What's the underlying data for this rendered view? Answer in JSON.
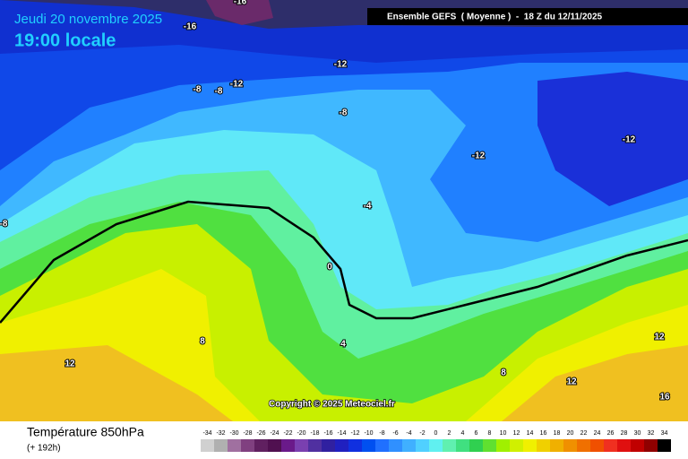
{
  "header": {
    "date": "Jeudi 20 novembre 2025",
    "time": "19:00 locale",
    "run": "Ensemble GEFS  ( Moyenne )  -  18 Z du 12/11/2025"
  },
  "map": {
    "contour_labels": [
      "-16",
      "-16",
      "-12",
      "-8",
      "-8",
      "-12",
      "-8",
      "-12",
      "-12",
      "-4",
      "-8",
      "0",
      "8",
      "4",
      "12",
      "12",
      "8",
      "12",
      "16"
    ],
    "copyright": "Copyright © 2025 Meteociel.fr"
  },
  "footer": {
    "title": "Température 850hPa",
    "subtitle": "(+ 192h)",
    "scale": {
      "labels": [
        "-34",
        "-32",
        "-30",
        "-28",
        "-26",
        "-24",
        "-22",
        "-20",
        "-18",
        "-16",
        "-14",
        "-12",
        "-10",
        "-8",
        "-6",
        "-4",
        "-2",
        "0",
        "2",
        "4",
        "6",
        "8",
        "10",
        "12",
        "14",
        "16",
        "18",
        "20",
        "22",
        "24",
        "26",
        "28",
        "30",
        "32",
        "34"
      ],
      "colors": [
        "#d0d0d0",
        "#b0b0b0",
        "#a070a0",
        "#804080",
        "#602060",
        "#501050",
        "#6a1a8a",
        "#7a40b0",
        "#5030a0",
        "#3020a0",
        "#2020c0",
        "#1030e0",
        "#0050f0",
        "#2070ff",
        "#3090ff",
        "#40b0ff",
        "#50d0ff",
        "#60f0f0",
        "#60f0b0",
        "#40e080",
        "#30d050",
        "#60e030",
        "#a0f000",
        "#d0f000",
        "#f0f000",
        "#f0d000",
        "#f0b000",
        "#f09000",
        "#f07000",
        "#f05000",
        "#f03020",
        "#e01010",
        "#c00000",
        "#900000",
        "#000000"
      ]
    }
  }
}
